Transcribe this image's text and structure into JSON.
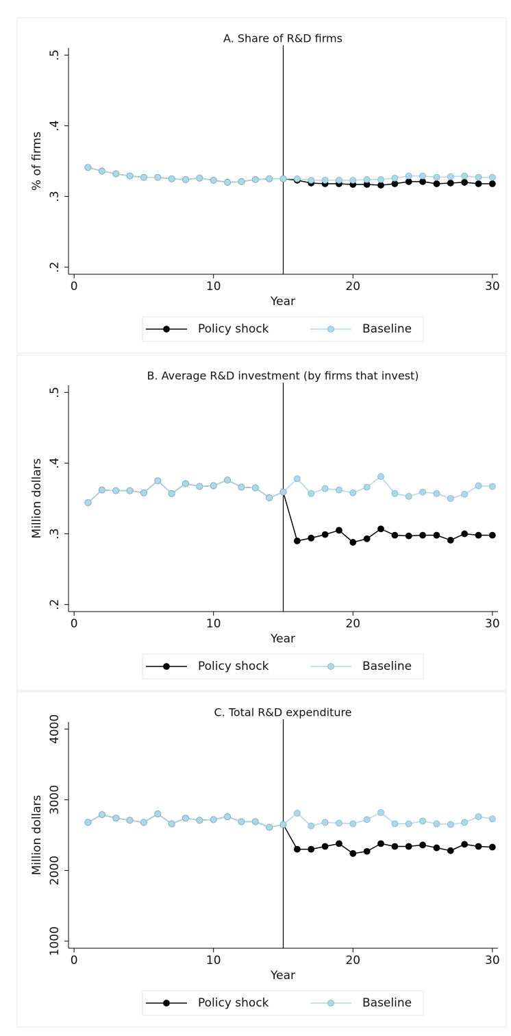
{
  "chart_data": [
    {
      "type": "line",
      "title": "A. Share of R&D firms",
      "xlabel": "Year",
      "ylabel": "% of firms",
      "x": [
        1,
        2,
        3,
        4,
        5,
        6,
        7,
        8,
        9,
        10,
        11,
        12,
        13,
        14,
        15,
        16,
        17,
        18,
        19,
        20,
        21,
        22,
        23,
        24,
        25,
        26,
        27,
        28,
        29,
        30
      ],
      "xlim": [
        -0.4,
        30.4
      ],
      "xticks": [
        0,
        10,
        20,
        30
      ],
      "ylim": [
        0.19,
        0.51
      ],
      "yticks": [
        {
          "value": 0.2,
          "label": ".2"
        },
        {
          "value": 0.3,
          "label": ".3"
        },
        {
          "value": 0.4,
          "label": ".4"
        },
        {
          "value": 0.5,
          "label": ".5"
        }
      ],
      "vline": 15,
      "legend": "bottom",
      "series": [
        {
          "name": "Policy shock",
          "color": "#000000",
          "values": [
            0.341,
            0.336,
            0.332,
            0.329,
            0.327,
            0.327,
            0.325,
            0.324,
            0.326,
            0.323,
            0.32,
            0.321,
            0.324,
            0.325,
            0.325,
            0.323,
            0.319,
            0.318,
            0.318,
            0.317,
            0.317,
            0.316,
            0.318,
            0.321,
            0.321,
            0.318,
            0.319,
            0.32,
            0.318,
            0.318
          ]
        },
        {
          "name": "Baseline",
          "color": "#add8e6",
          "values": [
            0.341,
            0.336,
            0.332,
            0.329,
            0.327,
            0.327,
            0.325,
            0.324,
            0.326,
            0.323,
            0.32,
            0.321,
            0.324,
            0.325,
            0.325,
            0.325,
            0.323,
            0.323,
            0.323,
            0.323,
            0.324,
            0.324,
            0.326,
            0.329,
            0.329,
            0.327,
            0.328,
            0.329,
            0.327,
            0.327
          ]
        }
      ]
    },
    {
      "type": "line",
      "title": "B. Average R&D investment (by firms that invest)",
      "xlabel": "Year",
      "ylabel": "Million dollars",
      "x": [
        1,
        2,
        3,
        4,
        5,
        6,
        7,
        8,
        9,
        10,
        11,
        12,
        13,
        14,
        15,
        16,
        17,
        18,
        19,
        20,
        21,
        22,
        23,
        24,
        25,
        26,
        27,
        28,
        29,
        30
      ],
      "xlim": [
        -0.4,
        30.4
      ],
      "xticks": [
        0,
        10,
        20,
        30
      ],
      "ylim": [
        0.19,
        0.51
      ],
      "yticks": [
        {
          "value": 0.2,
          "label": ".2"
        },
        {
          "value": 0.3,
          "label": ".3"
        },
        {
          "value": 0.4,
          "label": ".4"
        },
        {
          "value": 0.5,
          "label": ".5"
        }
      ],
      "vline": 15,
      "legend": "bottom",
      "series": [
        {
          "name": "Policy shock",
          "color": "#000000",
          "values": [
            0.344,
            0.362,
            0.361,
            0.361,
            0.358,
            0.375,
            0.357,
            0.371,
            0.367,
            0.368,
            0.376,
            0.366,
            0.365,
            0.351,
            0.359,
            0.29,
            0.294,
            0.299,
            0.305,
            0.288,
            0.293,
            0.307,
            0.298,
            0.297,
            0.298,
            0.298,
            0.291,
            0.3,
            0.298,
            0.298
          ]
        },
        {
          "name": "Baseline",
          "color": "#add8e6",
          "values": [
            0.344,
            0.362,
            0.361,
            0.361,
            0.358,
            0.375,
            0.357,
            0.371,
            0.367,
            0.368,
            0.376,
            0.366,
            0.365,
            0.351,
            0.359,
            0.378,
            0.357,
            0.364,
            0.362,
            0.358,
            0.366,
            0.381,
            0.357,
            0.353,
            0.359,
            0.357,
            0.35,
            0.356,
            0.368,
            0.367
          ]
        }
      ]
    },
    {
      "type": "line",
      "title": "C. Total R&D expenditure",
      "xlabel": "Year",
      "ylabel": "Million dollars",
      "x": [
        1,
        2,
        3,
        4,
        5,
        6,
        7,
        8,
        9,
        10,
        11,
        12,
        13,
        14,
        15,
        16,
        17,
        18,
        19,
        20,
        21,
        22,
        23,
        24,
        25,
        26,
        27,
        28,
        29,
        30
      ],
      "xlim": [
        -0.4,
        30.4
      ],
      "xticks": [
        0,
        10,
        20,
        30
      ],
      "ylim": [
        900,
        4100
      ],
      "yticks": [
        1000,
        2000,
        3000,
        4000
      ],
      "vline": 15,
      "legend": "bottom",
      "series": [
        {
          "name": "Policy shock",
          "color": "#000000",
          "values": [
            2680,
            2790,
            2740,
            2710,
            2680,
            2800,
            2660,
            2740,
            2710,
            2720,
            2760,
            2690,
            2690,
            2610,
            2650,
            2300,
            2300,
            2340,
            2380,
            2240,
            2270,
            2380,
            2340,
            2340,
            2360,
            2320,
            2280,
            2370,
            2340,
            2330
          ]
        },
        {
          "name": "Baseline",
          "color": "#add8e6",
          "values": [
            2680,
            2790,
            2740,
            2710,
            2680,
            2800,
            2660,
            2740,
            2710,
            2720,
            2760,
            2690,
            2690,
            2610,
            2650,
            2810,
            2630,
            2680,
            2670,
            2660,
            2720,
            2820,
            2660,
            2660,
            2700,
            2660,
            2650,
            2680,
            2760,
            2730
          ]
        }
      ]
    }
  ]
}
